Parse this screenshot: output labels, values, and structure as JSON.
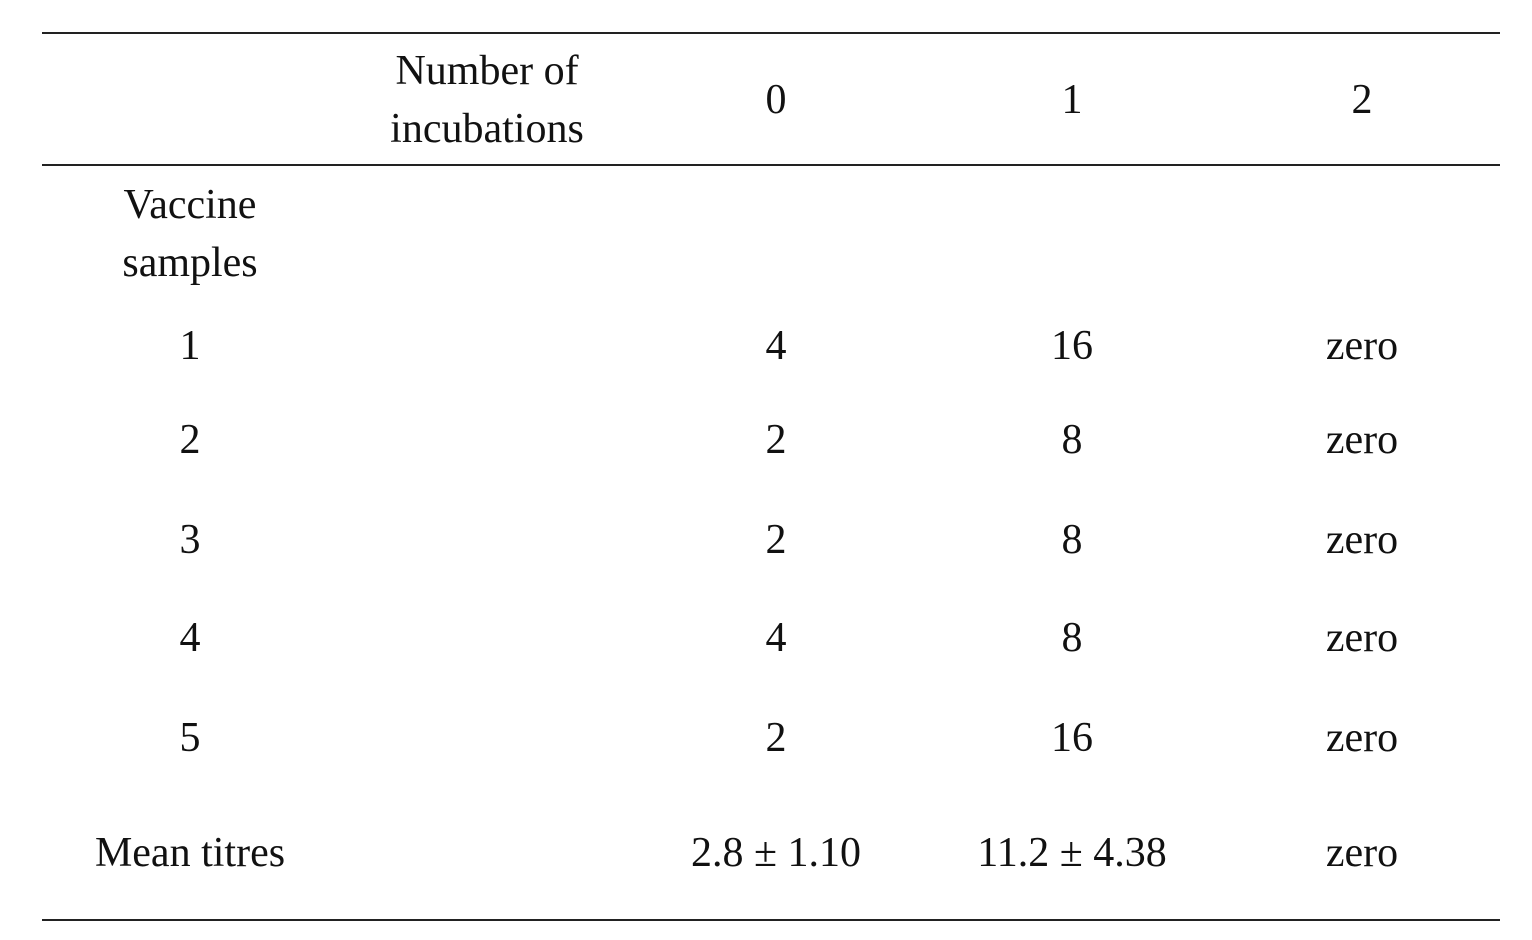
{
  "table": {
    "header": [
      "Number of incubations",
      0,
      1,
      2
    ],
    "group_label": "Vaccine samples",
    "rows": [
      [
        1,
        4,
        16,
        "zero"
      ],
      [
        2,
        2,
        8,
        "zero"
      ],
      [
        3,
        2,
        8,
        "zero"
      ],
      [
        4,
        4,
        8,
        "zero"
      ],
      [
        5,
        2,
        16,
        "zero"
      ],
      [
        "Mean titres",
        "2.8 ± 1.10",
        "11.2 ± 4.38",
        "zero"
      ]
    ]
  }
}
